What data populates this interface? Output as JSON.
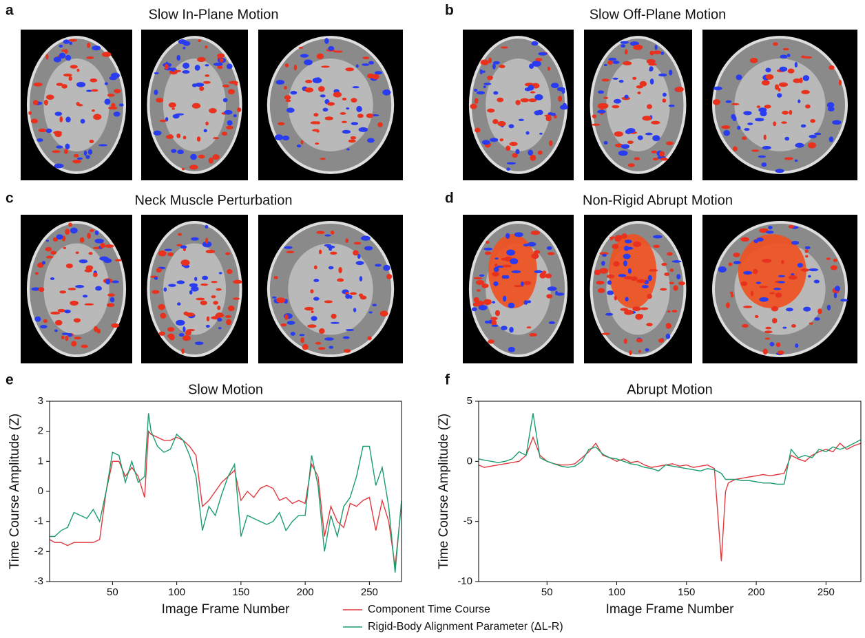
{
  "panels": [
    {
      "letter": "a",
      "title": "Slow In-Plane Motion"
    },
    {
      "letter": "b",
      "title": "Slow Off-Plane Motion"
    },
    {
      "letter": "c",
      "title": "Neck Muscle Perturbation"
    },
    {
      "letter": "d",
      "title": "Non-Rigid Abrupt Motion"
    }
  ],
  "chart_data": [
    {
      "type": "line",
      "label": "e",
      "title": "Slow Motion",
      "x_label": "Image Frame Number",
      "y_label": "Time Course Amplitude (Z)",
      "x": [
        1,
        5,
        10,
        15,
        20,
        25,
        30,
        35,
        40,
        45,
        50,
        55,
        60,
        65,
        70,
        75,
        78,
        80,
        85,
        90,
        95,
        100,
        105,
        110,
        115,
        120,
        125,
        130,
        135,
        140,
        145,
        150,
        155,
        160,
        165,
        170,
        175,
        180,
        185,
        190,
        195,
        200,
        205,
        210,
        215,
        220,
        225,
        230,
        235,
        240,
        245,
        250,
        255,
        260,
        265,
        270,
        275
      ],
      "series": [
        {
          "name": "Component Time Course",
          "color": "#e0393e",
          "values": [
            -1.6,
            -1.7,
            -1.7,
            -1.8,
            -1.7,
            -1.7,
            -1.7,
            -1.7,
            -1.6,
            0.0,
            1.0,
            1.0,
            0.5,
            0.8,
            0.5,
            -0.2,
            2.0,
            1.9,
            1.8,
            1.7,
            1.7,
            1.8,
            1.7,
            1.5,
            1.2,
            -0.5,
            -0.3,
            0.0,
            0.3,
            0.5,
            0.7,
            -0.3,
            0.0,
            -0.2,
            0.1,
            0.2,
            0.1,
            -0.3,
            -0.2,
            -0.4,
            -0.3,
            -0.4,
            0.9,
            0.5,
            -1.5,
            -0.5,
            -1.0,
            -1.2,
            -0.4,
            -0.5,
            -0.3,
            -0.2,
            -1.3,
            -0.3,
            -1.0,
            -2.5,
            -0.4
          ]
        },
        {
          "name": "Rigid-Body Alignment Parameter (ΔL-R)",
          "color": "#1a9c6c",
          "values": [
            -1.5,
            -1.5,
            -1.3,
            -1.2,
            -0.7,
            -0.8,
            -0.9,
            -0.6,
            -1.0,
            0.0,
            1.3,
            1.2,
            0.3,
            1.0,
            0.3,
            0.5,
            2.6,
            2.0,
            1.5,
            1.3,
            1.4,
            1.9,
            1.7,
            1.2,
            0.5,
            -1.3,
            -0.5,
            -0.8,
            -0.1,
            0.5,
            0.9,
            -1.5,
            -0.8,
            -0.9,
            -1.0,
            -1.1,
            -1.0,
            -0.7,
            -1.3,
            -1.0,
            -0.8,
            -0.8,
            1.2,
            0.2,
            -2.0,
            -0.8,
            -1.5,
            -0.5,
            -0.2,
            0.5,
            1.5,
            1.5,
            0.2,
            0.8,
            -0.5,
            -2.7,
            -0.3
          ]
        }
      ],
      "xlim": [
        1,
        275
      ],
      "xticks": [
        50,
        100,
        150,
        200,
        250
      ],
      "ylim": [
        -3,
        3
      ],
      "yticks": [
        -3,
        -2,
        -1,
        0,
        1,
        2,
        3
      ]
    },
    {
      "type": "line",
      "label": "f",
      "title": "Abrupt Motion",
      "x_label": "Image Frame Number",
      "y_label": "Time Course Amplitude (Z)",
      "x": [
        1,
        5,
        10,
        15,
        20,
        25,
        30,
        35,
        40,
        45,
        50,
        55,
        60,
        65,
        70,
        75,
        80,
        85,
        90,
        95,
        100,
        105,
        110,
        115,
        120,
        125,
        130,
        135,
        140,
        145,
        150,
        155,
        160,
        165,
        170,
        175,
        178,
        180,
        185,
        190,
        195,
        200,
        205,
        210,
        215,
        220,
        225,
        230,
        235,
        240,
        245,
        250,
        255,
        260,
        265,
        270,
        275
      ],
      "series": [
        {
          "name": "Component Time Course",
          "color": "#e0393e",
          "values": [
            -0.3,
            -0.5,
            -0.4,
            -0.3,
            -0.2,
            -0.1,
            0.0,
            0.5,
            2.0,
            0.5,
            0.0,
            -0.2,
            -0.3,
            -0.3,
            -0.2,
            0.3,
            0.8,
            1.5,
            0.5,
            0.3,
            0.0,
            0.2,
            -0.1,
            0.0,
            -0.3,
            -0.5,
            -0.4,
            -0.3,
            -0.2,
            -0.4,
            -0.3,
            -0.5,
            -0.4,
            -0.3,
            -0.6,
            -8.3,
            -2.5,
            -1.8,
            -1.5,
            -1.4,
            -1.3,
            -1.2,
            -1.1,
            -1.2,
            -1.1,
            -1.0,
            0.5,
            0.2,
            0.0,
            0.5,
            0.8,
            1.0,
            0.8,
            1.5,
            1.0,
            1.3,
            1.5
          ]
        },
        {
          "name": "Rigid-Body Alignment Parameter (ΔL-R)",
          "color": "#1a9c6c",
          "values": [
            0.2,
            0.1,
            0.0,
            -0.1,
            0.0,
            0.2,
            0.8,
            0.5,
            4.0,
            0.3,
            0.0,
            -0.2,
            -0.4,
            -0.5,
            -0.4,
            0.0,
            1.0,
            1.2,
            0.6,
            0.3,
            0.2,
            0.0,
            -0.2,
            -0.3,
            -0.5,
            -0.6,
            -0.8,
            -0.3,
            -0.4,
            -0.5,
            -0.6,
            -0.7,
            -0.8,
            -0.6,
            -0.7,
            -1.0,
            -1.5,
            -1.5,
            -1.5,
            -1.6,
            -1.6,
            -1.7,
            -1.8,
            -1.8,
            -1.9,
            -1.9,
            1.0,
            0.3,
            0.5,
            0.3,
            1.0,
            0.8,
            1.2,
            1.0,
            1.2,
            1.5,
            1.8
          ]
        }
      ],
      "xlim": [
        1,
        275
      ],
      "xticks": [
        50,
        100,
        150,
        200,
        250
      ],
      "ylim": [
        -10,
        5
      ],
      "yticks": [
        -10,
        -5,
        0,
        5
      ]
    }
  ]
}
